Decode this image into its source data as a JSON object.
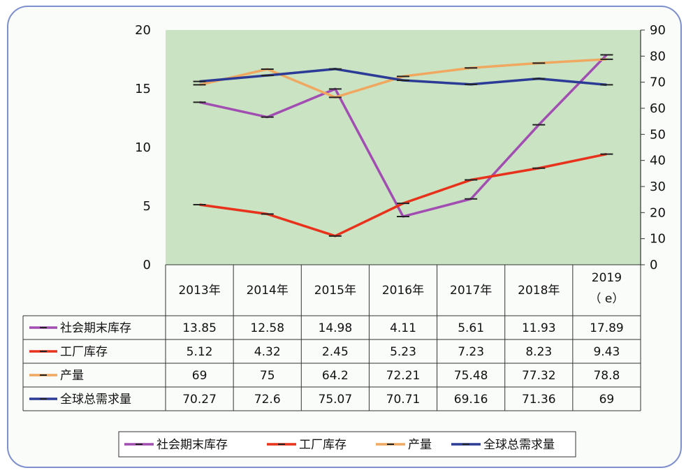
{
  "chart_data": {
    "type": "line",
    "categories": [
      "2013年",
      "2014年",
      "2015年",
      "2016年",
      "2017年",
      "2018年",
      "2019"
    ],
    "category_sub": [
      "",
      "",
      "",
      "",
      "",
      "",
      "（ e）"
    ],
    "y_left": {
      "ticks": [
        "0",
        "5",
        "10",
        "15",
        "20"
      ],
      "range": [
        0,
        20
      ]
    },
    "y_right": {
      "ticks": [
        "0",
        "10",
        "20",
        "30",
        "40",
        "50",
        "60",
        "70",
        "80",
        "90"
      ],
      "range": [
        0,
        90
      ]
    },
    "plot_background": "#c9e3c3",
    "series": [
      {
        "name": "社会期末库存",
        "axis": "left",
        "color": "#a24db2",
        "values": [
          13.85,
          12.58,
          14.98,
          4.11,
          5.61,
          11.93,
          17.89
        ],
        "display": [
          "13.85",
          "12.58",
          "14.98",
          "4.11",
          "5.61",
          "11.93",
          "17.89"
        ]
      },
      {
        "name": "工厂库存",
        "axis": "left",
        "color": "#e8321c",
        "values": [
          5.12,
          4.32,
          2.45,
          5.23,
          7.23,
          8.23,
          9.43
        ],
        "display": [
          "5.12",
          "4.32",
          "2.45",
          "5.23",
          "7.23",
          "8.23",
          "9.43"
        ]
      },
      {
        "name": "产量",
        "axis": "right",
        "color": "#f0a860",
        "values": [
          69,
          75,
          64.2,
          72.21,
          75.48,
          77.32,
          78.8
        ],
        "display": [
          "69",
          "75",
          "64.2",
          "72.21",
          "75.48",
          "77.32",
          "78.8"
        ]
      },
      {
        "name": "全球总需求量",
        "axis": "right",
        "color": "#2c3c96",
        "values": [
          70.27,
          72.6,
          75.07,
          70.71,
          69.16,
          71.36,
          69
        ],
        "display": [
          "70.27",
          "72.6",
          "75.07",
          "70.71",
          "69.16",
          "71.36",
          "69"
        ]
      }
    ],
    "legend_position": "bottom"
  }
}
